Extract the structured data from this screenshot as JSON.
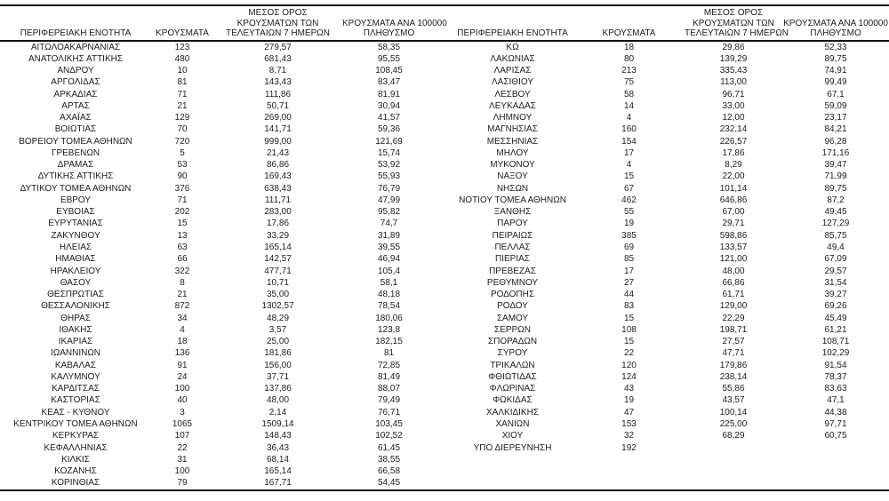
{
  "page": {
    "background": "#ffffff",
    "text_color": "#1c1c1c",
    "rule_color": "#111111"
  },
  "table": {
    "headers": {
      "region": "ΠΕΡΙΦΕΡΕΙΑΚΗ ΕΝΟΤΗΤΑ",
      "cases": "ΚΡΟΥΣΜΑΤΑ",
      "avg7_lines": [
        "ΜΕΣΟΣ ΟΡΟΣ",
        "ΚΡΟΥΣΜΑΤΩΝ ΤΩΝ",
        "ΤΕΛΕΥΤΑΙΩΝ 7 ΗΜΕΡΩΝ"
      ],
      "per100k_lines": [
        "ΚΡΟΥΣΜΑΤΑ ΑΝΑ 100000",
        "ΠΛΗΘΥΣΜΟ"
      ]
    },
    "left_rows": [
      [
        "ΑΙΤΩΛΟΑΚΑΡΝΑΝΙΑΣ",
        "123",
        "279,57",
        "58,35"
      ],
      [
        "ΑΝΑΤΟΛΙΚΗΣ ΑΤΤΙΚΗΣ",
        "480",
        "681,43",
        "95,55"
      ],
      [
        "ΑΝΔΡΟΥ",
        "10",
        "8,71",
        "108,45"
      ],
      [
        "ΑΡΓΟΛΙΔΑΣ",
        "81",
        "143,43",
        "83,47"
      ],
      [
        "ΑΡΚΑΔΙΑΣ",
        "71",
        "111,86",
        "81,91"
      ],
      [
        "ΑΡΤΑΣ",
        "21",
        "50,71",
        "30,94"
      ],
      [
        "ΑΧΑΪΑΣ",
        "129",
        "269,00",
        "41,57"
      ],
      [
        "ΒΟΙΩΤΙΑΣ",
        "70",
        "141,71",
        "59,36"
      ],
      [
        "ΒΟΡΕΙΟΥ ΤΟΜΕΑ ΑΘΗΝΩΝ",
        "720",
        "999,00",
        "121,69"
      ],
      [
        "ΓΡΕΒΕΝΩΝ",
        "5",
        "21,43",
        "15,74"
      ],
      [
        "ΔΡΑΜΑΣ",
        "53",
        "86,86",
        "53,92"
      ],
      [
        "ΔΥΤΙΚΗΣ ΑΤΤΙΚΗΣ",
        "90",
        "169,43",
        "55,93"
      ],
      [
        "ΔΥΤΙΚΟΥ ΤΟΜΕΑ ΑΘΗΝΩΝ",
        "376",
        "638,43",
        "76,79"
      ],
      [
        "ΕΒΡΟΥ",
        "71",
        "111,71",
        "47,99"
      ],
      [
        "ΕΥΒΟΙΑΣ",
        "202",
        "283,00",
        "95,82"
      ],
      [
        "ΕΥΡΥΤΑΝΙΑΣ",
        "15",
        "17,86",
        "74,7"
      ],
      [
        "ΖΑΚΥΝΘΟΥ",
        "13",
        "33,29",
        "31,89"
      ],
      [
        "ΗΛΕΙΑΣ",
        "63",
        "165,14",
        "39,55"
      ],
      [
        "ΗΜΑΘΙΑΣ",
        "66",
        "142,57",
        "46,94"
      ],
      [
        "ΗΡΑΚΛΕΙΟΥ",
        "322",
        "477,71",
        "105,4"
      ],
      [
        "ΘΑΣΟΥ",
        "8",
        "10,71",
        "58,1"
      ],
      [
        "ΘΕΣΠΡΩΤΙΑΣ",
        "21",
        "35,00",
        "48,18"
      ],
      [
        "ΘΕΣΣΑΛΟΝΙΚΗΣ",
        "872",
        "1302,57",
        "78,54"
      ],
      [
        "ΘΗΡΑΣ",
        "34",
        "48,29",
        "180,06"
      ],
      [
        "ΙΘΑΚΗΣ",
        "4",
        "3,57",
        "123,8"
      ],
      [
        "ΙΚΑΡΙΑΣ",
        "18",
        "25,00",
        "182,15"
      ],
      [
        "ΙΩΑΝΝΙΝΩΝ",
        "136",
        "181,86",
        "81"
      ],
      [
        "ΚΑΒΑΛΑΣ",
        "91",
        "156,00",
        "72,85"
      ],
      [
        "ΚΑΛΥΜΝΟΥ",
        "24",
        "37,71",
        "81,49"
      ],
      [
        "ΚΑΡΔΙΤΣΑΣ",
        "100",
        "137,86",
        "88,07"
      ],
      [
        "ΚΑΣΤΟΡΙΑΣ",
        "40",
        "48,00",
        "79,49"
      ],
      [
        "ΚΕΑΣ - ΚΥΘΝΟΥ",
        "3",
        "2,14",
        "76,71"
      ],
      [
        "ΚΕΝΤΡΙΚΟΥ ΤΟΜΕΑ ΑΘΗΝΩΝ",
        "1065",
        "1509,14",
        "103,45"
      ],
      [
        "ΚΕΡΚΥΡΑΣ",
        "107",
        "148,43",
        "102,52"
      ],
      [
        "ΚΕΦΑΛΛΗΝΙΑΣ",
        "22",
        "36,43",
        "61,45"
      ],
      [
        "ΚΙΛΚΙΣ",
        "31",
        "68,14",
        "38,55"
      ],
      [
        "ΚΟΖΑΝΗΣ",
        "100",
        "165,14",
        "66,58"
      ],
      [
        "ΚΟΡΙΝΘΙΑΣ",
        "79",
        "167,71",
        "54,45"
      ]
    ],
    "right_rows": [
      [
        "ΚΩ",
        "18",
        "29,86",
        "52,33"
      ],
      [
        "ΛΑΚΩΝΙΑΣ",
        "80",
        "139,29",
        "89,75"
      ],
      [
        "ΛΑΡΙΣΑΣ",
        "213",
        "335,43",
        "74,91"
      ],
      [
        "ΛΑΣΙΘΙΟΥ",
        "75",
        "113,00",
        "99,49"
      ],
      [
        "ΛΕΣΒΟΥ",
        "58",
        "96,71",
        "67,1"
      ],
      [
        "ΛΕΥΚΑΔΑΣ",
        "14",
        "33,00",
        "59,09"
      ],
      [
        "ΛΗΜΝΟΥ",
        "4",
        "12,00",
        "23,17"
      ],
      [
        "ΜΑΓΝΗΣΙΑΣ",
        "160",
        "232,14",
        "84,21"
      ],
      [
        "ΜΕΣΣΗΝΙΑΣ",
        "154",
        "226,57",
        "96,28"
      ],
      [
        "ΜΗΛΟΥ",
        "17",
        "17,86",
        "171,16"
      ],
      [
        "ΜΥΚΟΝΟΥ",
        "4",
        "8,29",
        "39,47"
      ],
      [
        "ΝΑΞΟΥ",
        "15",
        "22,00",
        "71,99"
      ],
      [
        "ΝΗΣΩΝ",
        "67",
        "101,14",
        "89,75"
      ],
      [
        "ΝΟΤΙΟΥ ΤΟΜΕΑ ΑΘΗΝΩΝ",
        "462",
        "646,86",
        "87,2"
      ],
      [
        "ΞΑΝΘΗΣ",
        "55",
        "67,00",
        "49,45"
      ],
      [
        "ΠΑΡΟΥ",
        "19",
        "29,71",
        "127,29"
      ],
      [
        "ΠΕΙΡΑΙΩΣ",
        "385",
        "598,86",
        "85,75"
      ],
      [
        "ΠΕΛΛΑΣ",
        "69",
        "133,57",
        "49,4"
      ],
      [
        "ΠΙΕΡΙΑΣ",
        "85",
        "121,00",
        "67,09"
      ],
      [
        "ΠΡΕΒΕΖΑΣ",
        "17",
        "48,00",
        "29,57"
      ],
      [
        "ΡΕΘΥΜΝΟΥ",
        "27",
        "66,86",
        "31,54"
      ],
      [
        "ΡΟΔΟΠΗΣ",
        "44",
        "61,71",
        "39,27"
      ],
      [
        "ΡΟΔΟΥ",
        "83",
        "129,00",
        "69,26"
      ],
      [
        "ΣΑΜΟΥ",
        "15",
        "22,29",
        "45,49"
      ],
      [
        "ΣΕΡΡΩΝ",
        "108",
        "198,71",
        "61,21"
      ],
      [
        "ΣΠΟΡΑΔΩΝ",
        "15",
        "27,57",
        "108,71"
      ],
      [
        "ΣΥΡΟΥ",
        "22",
        "47,71",
        "102,29"
      ],
      [
        "ΤΡΙΚΑΛΩΝ",
        "120",
        "179,86",
        "91,54"
      ],
      [
        "ΦΘΙΩΤΙΔΑΣ",
        "124",
        "238,14",
        "78,37"
      ],
      [
        "ΦΛΩΡΙΝΑΣ",
        "43",
        "55,86",
        "83,63"
      ],
      [
        "ΦΩΚΙΔΑΣ",
        "19",
        "43,57",
        "47,1"
      ],
      [
        "ΧΑΛΚΙΔΙΚΗΣ",
        "47",
        "100,14",
        "44,38"
      ],
      [
        "ΧΑΝΙΩΝ",
        "153",
        "225,00",
        "97,71"
      ],
      [
        "ΧΙΟΥ",
        "32",
        "68,29",
        "60,75"
      ],
      [
        "ΥΠΟ ΔΙΕΡΕΥΝΗΣΗ",
        "192",
        "",
        ""
      ]
    ]
  }
}
